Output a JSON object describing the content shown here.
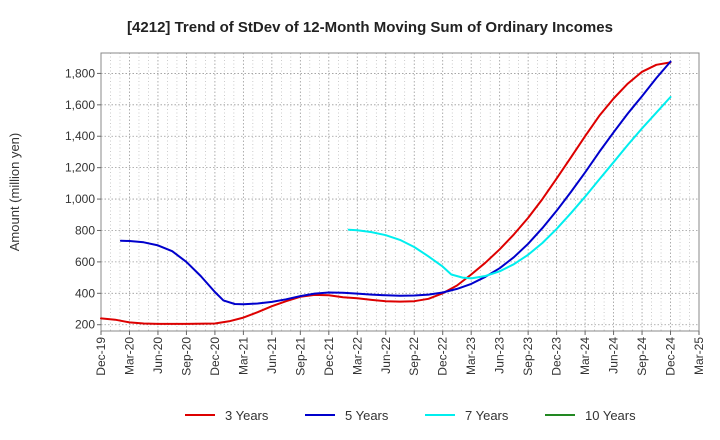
{
  "chart_data": {
    "type": "line",
    "title": "[4212]  Trend of StDev of 12-Month Moving Sum of Ordinary Incomes",
    "ylabel": "Amount (million yen)",
    "xlabel": "",
    "ylim": [
      160,
      1930
    ],
    "y_ticks": [
      200,
      400,
      600,
      800,
      1000,
      1200,
      1400,
      1600,
      1800
    ],
    "y_tick_labels": [
      "200",
      "400",
      "600",
      "800",
      "1,000",
      "1,200",
      "1,400",
      "1,600",
      "1,800"
    ],
    "x_ticks": [
      "Dec-19",
      "Mar-20",
      "Jun-20",
      "Sep-20",
      "Dec-20",
      "Mar-21",
      "Jun-21",
      "Sep-21",
      "Dec-21",
      "Mar-22",
      "Jun-22",
      "Sep-22",
      "Dec-22",
      "Mar-23",
      "Jun-23",
      "Sep-23",
      "Dec-23",
      "Mar-24",
      "Jun-24",
      "Sep-24",
      "Dec-24",
      "Mar-25"
    ],
    "x_range": [
      0,
      21
    ],
    "grid": true,
    "legend_position": "bottom",
    "series": [
      {
        "name": "3 Years",
        "color": "#dd0000",
        "points": [
          [
            0,
            240
          ],
          [
            0.5,
            232
          ],
          [
            1,
            215
          ],
          [
            1.5,
            208
          ],
          [
            2,
            205
          ],
          [
            3,
            205
          ],
          [
            4,
            208
          ],
          [
            4.5,
            222
          ],
          [
            5,
            245
          ],
          [
            5.5,
            280
          ],
          [
            6,
            318
          ],
          [
            6.5,
            350
          ],
          [
            7,
            378
          ],
          [
            7.5,
            390
          ],
          [
            8,
            388
          ],
          [
            8.5,
            375
          ],
          [
            9,
            368
          ],
          [
            9.5,
            358
          ],
          [
            10,
            350
          ],
          [
            10.5,
            347
          ],
          [
            11,
            350
          ],
          [
            11.5,
            365
          ],
          [
            12,
            400
          ],
          [
            12.5,
            450
          ],
          [
            13,
            520
          ],
          [
            13.5,
            595
          ],
          [
            14,
            680
          ],
          [
            14.5,
            775
          ],
          [
            15,
            880
          ],
          [
            15.5,
            1000
          ],
          [
            16,
            1130
          ],
          [
            16.5,
            1265
          ],
          [
            17,
            1400
          ],
          [
            17.5,
            1530
          ],
          [
            18,
            1640
          ],
          [
            18.5,
            1735
          ],
          [
            19,
            1810
          ],
          [
            19.5,
            1855
          ],
          [
            20,
            1870
          ]
        ]
      },
      {
        "name": "5 Years",
        "color": "#0000cc",
        "points": [
          [
            0.7,
            735
          ],
          [
            1,
            733
          ],
          [
            1.5,
            725
          ],
          [
            2,
            705
          ],
          [
            2.5,
            668
          ],
          [
            3,
            600
          ],
          [
            3.5,
            510
          ],
          [
            4,
            408
          ],
          [
            4.3,
            355
          ],
          [
            4.7,
            332
          ],
          [
            5,
            330
          ],
          [
            5.5,
            335
          ],
          [
            6,
            345
          ],
          [
            6.5,
            362
          ],
          [
            7,
            382
          ],
          [
            7.5,
            398
          ],
          [
            8,
            405
          ],
          [
            8.5,
            404
          ],
          [
            9,
            398
          ],
          [
            9.5,
            392
          ],
          [
            10,
            387
          ],
          [
            10.5,
            385
          ],
          [
            11,
            386
          ],
          [
            11.5,
            392
          ],
          [
            12,
            405
          ],
          [
            12.5,
            428
          ],
          [
            13,
            460
          ],
          [
            13.5,
            505
          ],
          [
            14,
            560
          ],
          [
            14.5,
            630
          ],
          [
            15,
            715
          ],
          [
            15.5,
            815
          ],
          [
            16,
            925
          ],
          [
            16.5,
            1045
          ],
          [
            17,
            1170
          ],
          [
            17.5,
            1300
          ],
          [
            18,
            1425
          ],
          [
            18.5,
            1545
          ],
          [
            19,
            1655
          ],
          [
            19.5,
            1770
          ],
          [
            20,
            1875
          ]
        ]
      },
      {
        "name": "7 Years",
        "color": "#00eeee",
        "points": [
          [
            8.7,
            805
          ],
          [
            9,
            802
          ],
          [
            9.5,
            790
          ],
          [
            10,
            770
          ],
          [
            10.5,
            740
          ],
          [
            11,
            695
          ],
          [
            11.5,
            635
          ],
          [
            12,
            570
          ],
          [
            12.3,
            520
          ],
          [
            12.7,
            500
          ],
          [
            13,
            495
          ],
          [
            13.5,
            510
          ],
          [
            14,
            540
          ],
          [
            14.5,
            585
          ],
          [
            15,
            645
          ],
          [
            15.5,
            720
          ],
          [
            16,
            810
          ],
          [
            16.5,
            910
          ],
          [
            17,
            1015
          ],
          [
            17.5,
            1125
          ],
          [
            18,
            1235
          ],
          [
            18.5,
            1345
          ],
          [
            19,
            1450
          ],
          [
            19.5,
            1550
          ],
          [
            20,
            1650
          ]
        ]
      },
      {
        "name": "10 Years",
        "color": "#228822",
        "points": []
      }
    ]
  }
}
